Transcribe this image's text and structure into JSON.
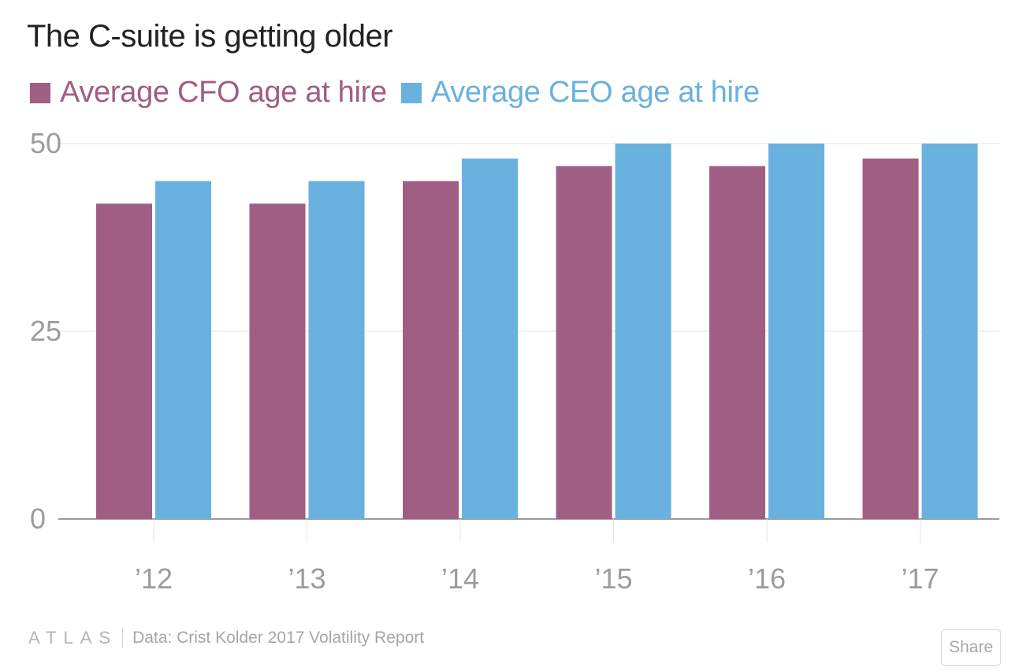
{
  "header": {
    "title": "The C-suite is getting older"
  },
  "legend": [
    {
      "label": "Average CFO age at hire",
      "color": "#a05e84"
    },
    {
      "label": "Average CEO age at hire",
      "color": "#69b1df"
    }
  ],
  "chart_data": {
    "type": "bar",
    "title": "The C-suite is getting older",
    "categories": [
      "’12",
      "’13",
      "’14",
      "’15",
      "’16",
      "’17"
    ],
    "series": [
      {
        "name": "Average CFO age at hire",
        "color": "#a05e84",
        "values": [
          42,
          42,
          45,
          47,
          47,
          48
        ]
      },
      {
        "name": "Average CEO age at hire",
        "color": "#69b1df",
        "values": [
          45,
          45,
          48,
          50,
          50,
          50
        ]
      }
    ],
    "yticks": [
      "0",
      "25",
      "50"
    ],
    "ylim": [
      0,
      50
    ],
    "grid": true,
    "legend_position": "top-left"
  },
  "footer": {
    "logo": "ATLAS",
    "source": "Data:  Crist Kolder 2017 Volatility Report",
    "share_label": "Share"
  }
}
